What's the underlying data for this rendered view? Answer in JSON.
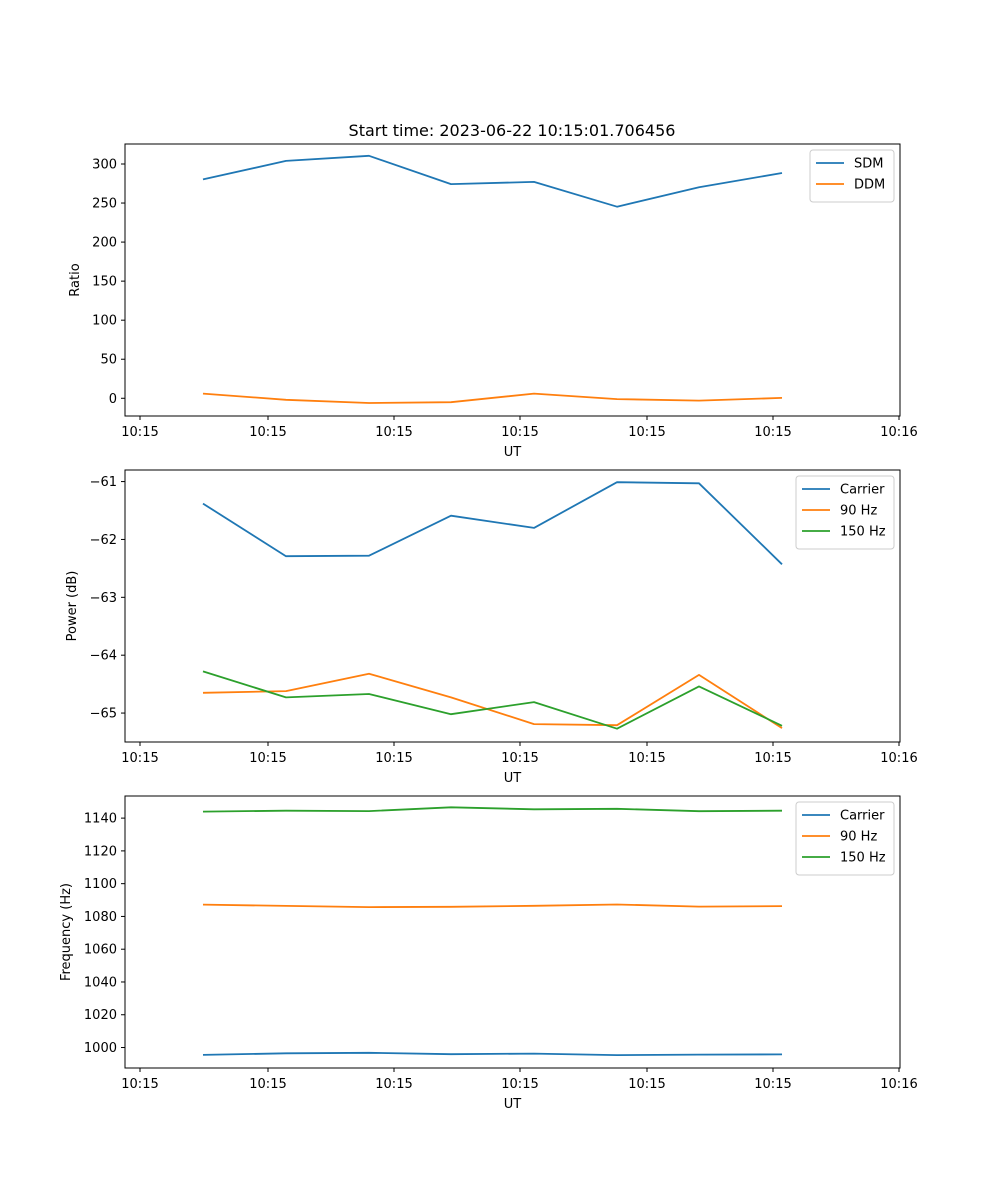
{
  "title": "Start time: 2023-06-22 10:15:01.706456",
  "colors": {
    "blue": "#1f77b4",
    "orange": "#ff7f0e",
    "green": "#2ca02c"
  },
  "chart_data": [
    {
      "type": "line",
      "xlabel": "UT",
      "ylabel": "Ratio",
      "x_tick_labels": [
        "10:15",
        "10:15",
        "10:15",
        "10:15",
        "10:15",
        "10:15",
        "10:15",
        "10:16"
      ],
      "y_ticks": [
        0,
        50,
        100,
        150,
        200,
        250,
        300
      ],
      "ylim": [
        -22.7,
        325.6
      ],
      "legend": "top-right",
      "series": [
        {
          "name": "SDM",
          "color": "#1f77b4",
          "values": [
            280.3,
            304.0,
            310.5,
            274.2,
            277.1,
            245.3,
            270.2,
            288.5
          ]
        },
        {
          "name": "DDM",
          "color": "#ff7f0e",
          "values": [
            6.0,
            -2.0,
            -6.0,
            -5.0,
            6.0,
            -1.0,
            -3.0,
            0.5
          ]
        }
      ]
    },
    {
      "type": "line",
      "xlabel": "UT",
      "ylabel": "Power (dB)",
      "x_tick_labels": [
        "10:15",
        "10:15",
        "10:15",
        "10:15",
        "10:15",
        "10:15",
        "10:15",
        "10:16"
      ],
      "y_ticks": [
        -61,
        -62,
        -63,
        -64,
        -65
      ],
      "ylim": [
        -65.5,
        -60.8
      ],
      "legend": "top-right",
      "series": [
        {
          "name": "Carrier",
          "color": "#1f77b4",
          "values": [
            -61.38,
            -62.29,
            -62.28,
            -61.59,
            -61.8,
            -61.01,
            -61.03,
            -62.43
          ]
        },
        {
          "name": "90 Hz",
          "color": "#ff7f0e",
          "values": [
            -64.65,
            -64.62,
            -64.32,
            -64.73,
            -65.19,
            -65.21,
            -64.34,
            -65.26
          ]
        },
        {
          "name": "150 Hz",
          "color": "#2ca02c",
          "values": [
            -64.28,
            -64.73,
            -64.67,
            -65.02,
            -64.81,
            -65.27,
            -64.54,
            -65.22
          ]
        }
      ]
    },
    {
      "type": "line",
      "xlabel": "UT",
      "ylabel": "Frequency (Hz)",
      "x_tick_labels": [
        "10:15",
        "10:15",
        "10:15",
        "10:15",
        "10:15",
        "10:15",
        "10:15",
        "10:16"
      ],
      "y_ticks": [
        1000,
        1020,
        1040,
        1060,
        1080,
        1100,
        1120,
        1140
      ],
      "ylim": [
        987.5,
        1153.5
      ],
      "legend": "top-right",
      "series": [
        {
          "name": "Carrier",
          "color": "#1f77b4",
          "values": [
            995.5,
            996.5,
            996.8,
            995.9,
            996.3,
            995.4,
            995.7,
            995.8
          ]
        },
        {
          "name": "90 Hz",
          "color": "#ff7f0e",
          "values": [
            1087.2,
            1086.4,
            1085.7,
            1085.9,
            1086.5,
            1087.3,
            1086.0,
            1086.3
          ]
        },
        {
          "name": "150 Hz",
          "color": "#2ca02c",
          "values": [
            1144.0,
            1144.5,
            1144.3,
            1146.6,
            1145.4,
            1145.7,
            1144.2,
            1144.5
          ]
        }
      ]
    }
  ]
}
